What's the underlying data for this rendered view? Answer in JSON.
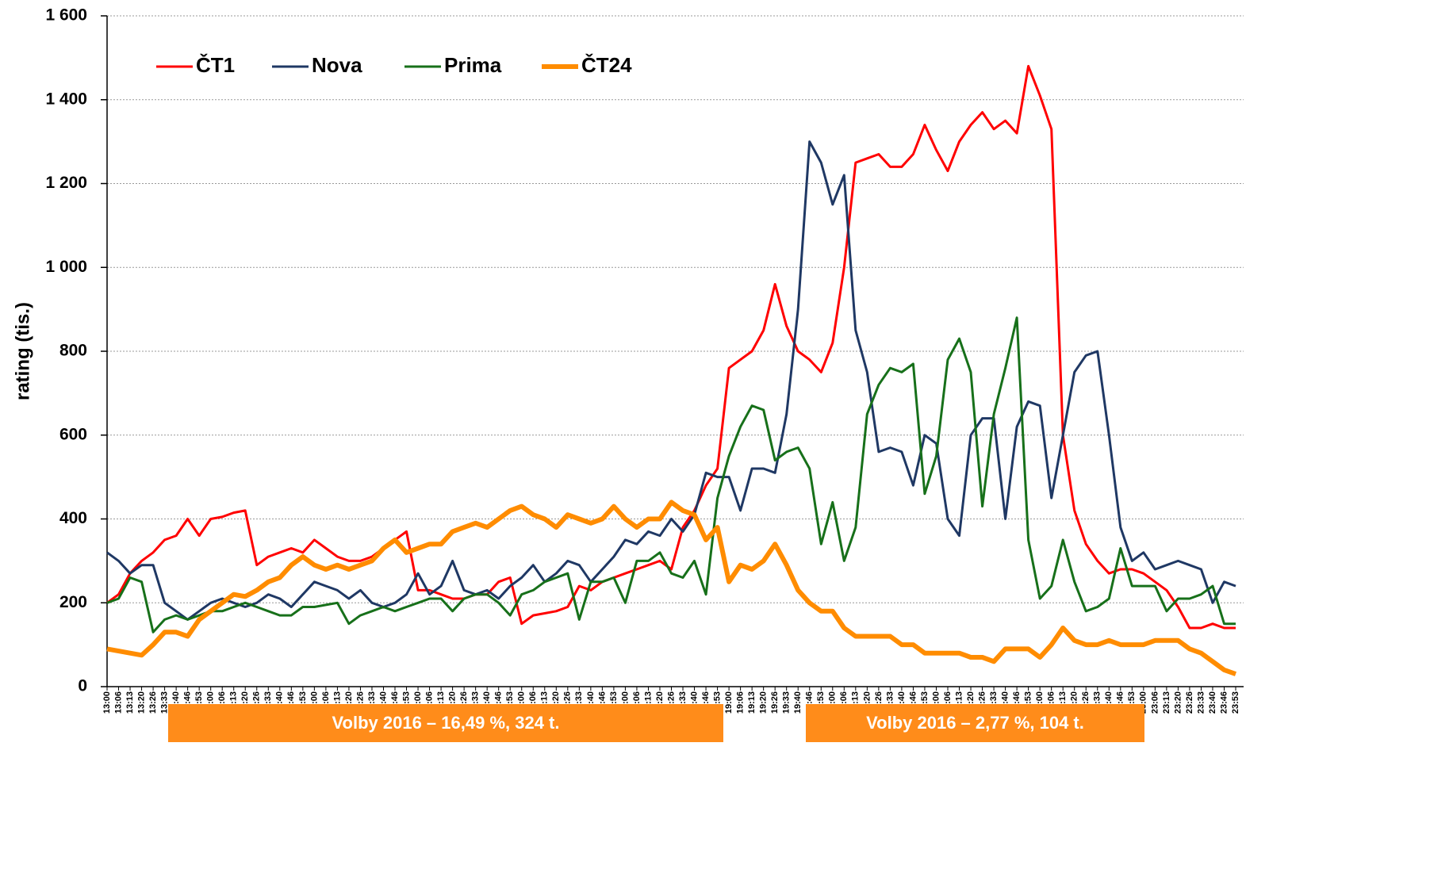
{
  "chart_data": {
    "type": "line",
    "y_axis_label": "rating (tis.)",
    "x": [
      "13:00",
      "13:06",
      "13:13",
      "13:20",
      "13:26",
      "13:33",
      "13:40",
      "13:46",
      "13:53",
      "14:00",
      "14:06",
      "14:13",
      "14:20",
      "14:26",
      "14:33",
      "14:40",
      "14:46",
      "14:53",
      "15:00",
      "15:06",
      "15:13",
      "15:20",
      "15:26",
      "15:33",
      "15:40",
      "15:46",
      "15:53",
      "16:00",
      "16:06",
      "16:13",
      "16:20",
      "16:26",
      "16:33",
      "16:40",
      "16:46",
      "16:53",
      "17:00",
      "17:06",
      "17:13",
      "17:20",
      "17:26",
      "17:33",
      "17:40",
      "17:46",
      "17:53",
      "18:00",
      "18:06",
      "18:13",
      "18:20",
      "18:26",
      "18:33",
      "18:40",
      "18:46",
      "18:53",
      "19:00",
      "19:06",
      "19:13",
      "19:20",
      "19:26",
      "19:33",
      "19:40",
      "19:46",
      "19:53",
      "20:00",
      "20:06",
      "20:13",
      "20:20",
      "20:26",
      "20:33",
      "20:40",
      "20:46",
      "20:53",
      "21:00",
      "21:06",
      "21:13",
      "21:20",
      "21:26",
      "21:33",
      "21:40",
      "21:46",
      "21:53",
      "22:00",
      "22:06",
      "22:13",
      "22:20",
      "22:26",
      "22:33",
      "22:40",
      "22:46",
      "22:53",
      "23:00",
      "23:06",
      "23:13",
      "23:20",
      "23:26",
      "23:33",
      "23:40",
      "23:46",
      "23:53"
    ],
    "series": [
      {
        "name": "ČT1",
        "color": "#ff0000",
        "width": 3,
        "values": [
          200,
          220,
          270,
          300,
          320,
          350,
          360,
          400,
          360,
          400,
          405,
          415,
          420,
          290,
          310,
          320,
          330,
          320,
          350,
          330,
          310,
          300,
          300,
          310,
          330,
          350,
          370,
          230,
          230,
          220,
          210,
          210,
          220,
          220,
          250,
          260,
          150,
          170,
          175,
          180,
          190,
          240,
          230,
          250,
          260,
          270,
          280,
          290,
          300,
          280,
          380,
          420,
          480,
          520,
          760,
          780,
          800,
          850,
          960,
          860,
          800,
          780,
          750,
          820,
          1000,
          1250,
          1260,
          1270,
          1240,
          1240,
          1270,
          1340,
          1280,
          1230,
          1300,
          1340,
          1370,
          1330,
          1350,
          1320,
          1480,
          1410,
          1330,
          600,
          420,
          340,
          300,
          270,
          280,
          280,
          270,
          250,
          230,
          190,
          140,
          140,
          150,
          140,
          140
        ]
      },
      {
        "name": "Nova",
        "color": "#1f3864",
        "width": 3,
        "values": [
          320,
          300,
          270,
          290,
          290,
          200,
          180,
          160,
          180,
          200,
          210,
          200,
          190,
          200,
          220,
          210,
          190,
          220,
          250,
          240,
          230,
          210,
          230,
          200,
          190,
          200,
          220,
          270,
          220,
          240,
          300,
          230,
          220,
          230,
          210,
          240,
          260,
          290,
          250,
          270,
          300,
          290,
          250,
          280,
          310,
          350,
          340,
          370,
          360,
          400,
          370,
          410,
          510,
          500,
          500,
          420,
          520,
          520,
          510,
          650,
          900,
          1300,
          1250,
          1150,
          1220,
          850,
          750,
          560,
          570,
          560,
          480,
          600,
          580,
          400,
          360,
          600,
          640,
          640,
          400,
          620,
          680,
          670,
          450,
          600,
          750,
          790,
          800,
          600,
          380,
          300,
          320,
          280,
          290,
          300,
          290,
          280,
          200,
          250,
          240
        ]
      },
      {
        "name": "Prima",
        "color": "#17701a",
        "width": 3,
        "values": [
          200,
          210,
          260,
          250,
          130,
          160,
          170,
          160,
          170,
          180,
          180,
          190,
          200,
          190,
          180,
          170,
          170,
          190,
          190,
          195,
          200,
          150,
          170,
          180,
          190,
          180,
          190,
          200,
          210,
          210,
          180,
          210,
          220,
          220,
          200,
          170,
          220,
          230,
          250,
          260,
          270,
          160,
          250,
          250,
          260,
          200,
          300,
          300,
          320,
          270,
          260,
          300,
          220,
          450,
          550,
          620,
          670,
          660,
          540,
          560,
          570,
          520,
          340,
          440,
          300,
          380,
          650,
          720,
          760,
          750,
          770,
          460,
          550,
          780,
          830,
          750,
          430,
          650,
          760,
          880,
          350,
          210,
          240,
          350,
          250,
          180,
          190,
          210,
          330,
          240,
          240,
          240,
          180,
          210,
          210,
          220,
          240,
          150,
          150
        ]
      },
      {
        "name": "ČT24",
        "color": "#ff8c00",
        "width": 6,
        "values": [
          90,
          85,
          80,
          75,
          100,
          130,
          130,
          120,
          160,
          180,
          200,
          220,
          215,
          230,
          250,
          260,
          290,
          310,
          290,
          280,
          290,
          280,
          290,
          300,
          330,
          350,
          320,
          330,
          340,
          340,
          370,
          380,
          390,
          380,
          400,
          420,
          430,
          410,
          400,
          380,
          410,
          400,
          390,
          400,
          430,
          400,
          380,
          400,
          400,
          440,
          420,
          410,
          350,
          380,
          250,
          290,
          280,
          300,
          340,
          290,
          230,
          200,
          180,
          180,
          140,
          120,
          120,
          120,
          120,
          100,
          100,
          80,
          80,
          80,
          80,
          70,
          70,
          60,
          90,
          90,
          90,
          70,
          100,
          140,
          110,
          100,
          100,
          110,
          100,
          100,
          100,
          110,
          110,
          110,
          90,
          80,
          60,
          40,
          30
        ]
      }
    ],
    "ylim": [
      0,
      1600
    ],
    "yticks": [
      0,
      200,
      400,
      600,
      800,
      {
        "value": 1000,
        "label": "1 000"
      },
      {
        "value": 1200,
        "label": "1 200"
      },
      {
        "value": 1400,
        "label": "1 400"
      },
      {
        "value": 1600,
        "label": "1 600"
      }
    ],
    "grid": true,
    "legend": "top-left",
    "annotations": [
      {
        "text": "Volby 2016 – 16,49 %, 324 t.",
        "color": "#ff8c1a"
      },
      {
        "text": "Volby 2016 – 2,77 %, 104 t.",
        "color": "#ff8c1a"
      }
    ]
  }
}
